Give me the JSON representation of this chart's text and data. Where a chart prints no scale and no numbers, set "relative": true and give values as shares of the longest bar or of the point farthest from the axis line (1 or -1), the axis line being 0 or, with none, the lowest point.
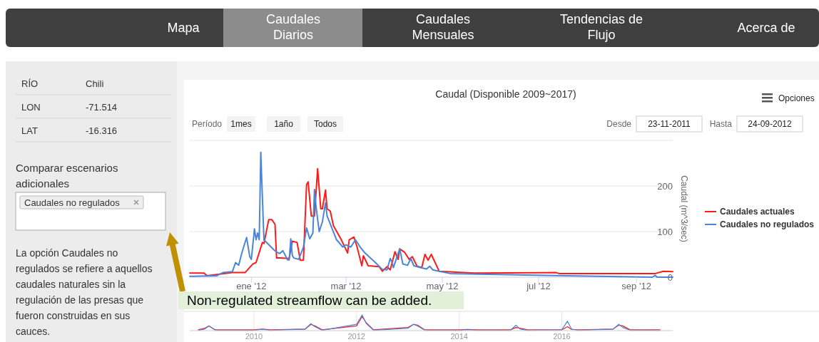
{
  "chart_data": [
    {
      "type": "other",
      "annotations": [
        "Mapa",
        "Caudales Diarios",
        "Caudales Mensuales",
        "Tendencias de Flujo",
        "Acerca de"
      ]
    },
    {
      "type": "other",
      "annotations": [
        "RÍO",
        "Chili",
        "LON",
        "-71.514",
        "LAT",
        "-16.316",
        "Comparar escenarios adicionales",
        "Caudales no regulados",
        "La opción Caudales no regulados se refiere a aquellos caudales naturales sin la regulación de las presas que fueron construidas en sus cauces."
      ]
    },
    {
      "type": "line",
      "title": "Caudal (Disponible 2009~2017)",
      "ylabel": "Caudal (m^3/sec)",
      "legend": "right",
      "grid": "y",
      "xlim": [
        "2011-11-23",
        "2012-09-24"
      ],
      "xticks": [
        {
          "value": "2012-01-01",
          "label": "ene '12"
        },
        {
          "value": "2012-03-01",
          "label": "mar '12"
        },
        {
          "value": "2012-05-01",
          "label": "may '12"
        },
        {
          "value": "2012-07-01",
          "label": "jul '12"
        },
        {
          "value": "2012-09-01",
          "label": "sep '12"
        }
      ],
      "ylim": [
        0,
        300
      ],
      "yticks": [
        0,
        100,
        200
      ],
      "series": [
        {
          "name": "Caudales actuales",
          "color": "#ff1a1a",
          "x": [
            "2011-11-23",
            "2011-11-25",
            "2011-12-02",
            "2011-12-04",
            "2011-12-20",
            "2011-12-28",
            "2012-01-02",
            "2012-01-04",
            "2012-01-08",
            "2012-01-09",
            "2012-01-12",
            "2012-01-14",
            "2012-01-16",
            "2012-01-17",
            "2012-01-19",
            "2012-01-25",
            "2012-01-27",
            "2012-01-30",
            "2012-02-01",
            "2012-02-03",
            "2012-02-05",
            "2012-02-06",
            "2012-02-08",
            "2012-02-10",
            "2012-02-12",
            "2012-02-14",
            "2012-02-15",
            "2012-02-17",
            "2012-02-18",
            "2012-02-20",
            "2012-02-22",
            "2012-02-27",
            "2012-03-02",
            "2012-03-03",
            "2012-03-06",
            "2012-03-08",
            "2012-03-11",
            "2012-03-12",
            "2012-03-15",
            "2012-03-22",
            "2012-03-24",
            "2012-03-27",
            "2012-03-29",
            "2012-04-01",
            "2012-04-03",
            "2012-04-04",
            "2012-04-07",
            "2012-04-10",
            "2012-04-12",
            "2012-04-15",
            "2012-04-18",
            "2012-04-20",
            "2012-04-22",
            "2012-04-24",
            "2012-04-29",
            "2012-05-21",
            "2012-07-12",
            "2012-07-14",
            "2012-09-13",
            "2012-09-18",
            "2012-09-24"
          ],
          "values": [
            9,
            9,
            9,
            3,
            10,
            10,
            29,
            32,
            76,
            74,
            126,
            126,
            116,
            42,
            42,
            41,
            79,
            76,
            37,
            37,
            203,
            209,
            134,
            134,
            238,
            150,
            150,
            191,
            150,
            145,
            113,
            82,
            53,
            82,
            88,
            66,
            25,
            47,
            25,
            23,
            13,
            23,
            16,
            56,
            39,
            62,
            55,
            39,
            45,
            24,
            21,
            50,
            37,
            50,
            13,
            9,
            10,
            8,
            8,
            13,
            12
          ]
        },
        {
          "name": "Caudales no regulados",
          "color": "#4a86d8",
          "x": [
            "2011-11-23",
            "2011-11-25",
            "2011-12-10",
            "2011-12-14",
            "2011-12-20",
            "2011-12-22",
            "2011-12-24",
            "2011-12-26",
            "2011-12-29",
            "2011-12-31",
            "2012-01-01",
            "2012-01-03",
            "2012-01-04",
            "2012-01-05",
            "2012-01-06",
            "2012-01-07",
            "2012-01-08",
            "2012-01-09",
            "2012-01-15",
            "2012-01-17",
            "2012-01-19",
            "2012-01-21",
            "2012-01-24",
            "2012-01-25",
            "2012-01-26",
            "2012-01-27",
            "2012-01-28",
            "2012-01-31",
            "2012-02-03",
            "2012-02-05",
            "2012-02-07",
            "2012-02-09",
            "2012-02-10",
            "2012-02-11",
            "2012-02-13",
            "2012-02-15",
            "2012-02-17",
            "2012-02-18",
            "2012-02-24",
            "2012-02-28",
            "2012-03-01",
            "2012-03-04",
            "2012-03-07",
            "2012-03-10",
            "2012-03-13",
            "2012-03-19",
            "2012-03-24",
            "2012-03-27",
            "2012-03-29",
            "2012-03-30",
            "2012-03-31",
            "2012-04-04",
            "2012-04-06",
            "2012-04-09",
            "2012-04-11",
            "2012-04-13",
            "2012-04-17",
            "2012-04-21",
            "2012-04-23",
            "2012-04-25",
            "2012-04-29",
            "2012-05-06",
            "2012-07-05",
            "2012-09-11",
            "2012-09-13",
            "2012-09-14",
            "2012-09-24"
          ],
          "values": [
            2,
            2,
            3,
            10,
            12,
            32,
            26,
            53,
            87,
            45,
            39,
            106,
            82,
            97,
            82,
            274,
            176,
            82,
            61,
            55,
            52,
            58,
            38,
            38,
            84,
            47,
            42,
            39,
            66,
            108,
            84,
            97,
            192,
            155,
            100,
            121,
            163,
            134,
            82,
            66,
            71,
            66,
            82,
            66,
            53,
            34,
            17,
            16,
            41,
            34,
            21,
            62,
            29,
            26,
            41,
            25,
            21,
            18,
            24,
            16,
            13,
            8,
            4,
            0,
            4,
            0,
            0
          ]
        }
      ],
      "annotations": [
        "Período",
        "1mes",
        "1año",
        "Todos",
        "Desde",
        "23-11-2011",
        "Hasta",
        "24-09-2012",
        "Opciones",
        "Non-regulated streamflow can be added."
      ]
    },
    {
      "type": "line",
      "relative": true,
      "grid": "x",
      "xlim": [
        "2008-10-01",
        "2018-03-01"
      ],
      "xticks": [
        {
          "value": "2010-01-01",
          "label": "2010"
        },
        {
          "value": "2012-01-01",
          "label": "2012"
        },
        {
          "value": "2014-01-01",
          "label": "2014"
        },
        {
          "value": "2016-01-01",
          "label": "2016"
        }
      ],
      "series": [
        {
          "color": "#ff1a1a",
          "x": [
            "2008-12-01",
            "2009-01-15",
            "2009-02-15",
            "2009-04-01",
            "2010-01-01",
            "2010-03-01",
            "2010-05-01",
            "2011-01-01",
            "2011-02-10",
            "2011-03-10",
            "2011-05-01",
            "2012-01-01",
            "2012-02-10",
            "2012-03-10",
            "2012-05-01",
            "2013-01-01",
            "2013-02-10",
            "2013-03-10",
            "2013-05-01",
            "2014-01-01",
            "2014-03-01",
            "2014-05-01",
            "2015-01-01",
            "2015-02-10",
            "2015-03-10",
            "2015-05-01",
            "2016-01-01",
            "2016-02-10",
            "2016-03-10",
            "2016-05-01",
            "2017-01-01",
            "2017-02-10",
            "2017-03-10",
            "2017-05-01",
            "2017-12-01"
          ],
          "values": [
            0.05,
            0.15,
            0.3,
            0.05,
            0.05,
            0.1,
            0.05,
            0.1,
            0.4,
            0.3,
            0.05,
            0.3,
            0.9,
            0.5,
            0.05,
            0.2,
            0.4,
            0.35,
            0.05,
            0.05,
            0.08,
            0.05,
            0.05,
            0.2,
            0.15,
            0.05,
            0.05,
            0.25,
            0.08,
            0.05,
            0.1,
            0.35,
            0.3,
            0.05,
            0.05
          ]
        },
        {
          "color": "#4a86d8",
          "x": [
            "2008-12-01",
            "2009-01-15",
            "2009-02-15",
            "2009-04-01",
            "2010-01-01",
            "2010-03-01",
            "2010-05-01",
            "2011-01-01",
            "2011-02-10",
            "2011-03-10",
            "2011-05-01",
            "2012-01-01",
            "2012-02-10",
            "2012-03-10",
            "2012-05-01",
            "2013-01-01",
            "2013-02-10",
            "2013-03-10",
            "2013-05-01",
            "2014-01-01",
            "2014-03-01",
            "2014-05-01",
            "2015-01-01",
            "2015-02-10",
            "2015-03-10",
            "2015-05-01",
            "2016-01-01",
            "2016-02-10",
            "2016-03-10",
            "2016-05-01",
            "2017-01-01",
            "2017-02-10",
            "2017-03-10",
            "2017-05-01",
            "2017-12-01"
          ],
          "values": [
            0.02,
            0.1,
            0.3,
            0.02,
            0.02,
            0.08,
            0.02,
            0.1,
            0.45,
            0.25,
            0.02,
            0.4,
            1,
            0.45,
            0.02,
            0.15,
            0.4,
            0.3,
            0.02,
            0.02,
            0.05,
            0.02,
            0.02,
            0.35,
            0.1,
            0.02,
            0.05,
            0.6,
            0.1,
            0.02,
            0.1,
            0.4,
            0.2,
            0.02,
            0.02
          ]
        }
      ]
    }
  ]
}
